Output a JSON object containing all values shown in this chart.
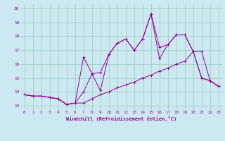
{
  "xlabel": "Windchill (Refroidissement éolien,°C)",
  "bg_color": "#cce8f0",
  "line_color": "#990099",
  "grid_color": "#99ccbb",
  "xlim": [
    -0.5,
    23.5
  ],
  "ylim": [
    12.7,
    20.3
  ],
  "yticks": [
    13,
    14,
    15,
    16,
    17,
    18,
    19,
    20
  ],
  "xticks": [
    0,
    1,
    2,
    3,
    4,
    5,
    6,
    7,
    8,
    9,
    10,
    11,
    12,
    13,
    14,
    15,
    16,
    17,
    18,
    19,
    20,
    21,
    22,
    23
  ],
  "line1_x": [
    0,
    1,
    2,
    3,
    4,
    5,
    6,
    7,
    8,
    9,
    10,
    11,
    12,
    13,
    14,
    15,
    16,
    17,
    18,
    19,
    20,
    21,
    22,
    23
  ],
  "line1_y": [
    13.8,
    13.7,
    13.7,
    13.6,
    13.5,
    13.1,
    13.2,
    13.2,
    13.5,
    13.8,
    14.0,
    14.3,
    14.5,
    14.7,
    15.0,
    15.2,
    15.5,
    15.7,
    16.0,
    16.2,
    16.9,
    16.9,
    14.8,
    14.4
  ],
  "line2_x": [
    0,
    1,
    2,
    3,
    4,
    5,
    6,
    7,
    8,
    9,
    10,
    11,
    12,
    13,
    14,
    15,
    16,
    17,
    18,
    19,
    20,
    21,
    22,
    23
  ],
  "line2_y": [
    13.8,
    13.7,
    13.7,
    13.6,
    13.5,
    13.1,
    13.2,
    16.5,
    15.3,
    14.1,
    16.7,
    17.5,
    17.8,
    17.0,
    17.8,
    19.6,
    16.4,
    17.4,
    18.1,
    18.1,
    16.9,
    15.0,
    14.8,
    14.4
  ],
  "line3_x": [
    0,
    1,
    2,
    3,
    4,
    5,
    6,
    7,
    8,
    9,
    10,
    11,
    12,
    13,
    14,
    15,
    16,
    17,
    18,
    19,
    20,
    21,
    22,
    23
  ],
  "line3_y": [
    13.8,
    13.7,
    13.7,
    13.6,
    13.5,
    13.1,
    13.2,
    14.0,
    15.3,
    15.4,
    16.7,
    17.5,
    17.8,
    17.0,
    17.8,
    19.6,
    17.2,
    17.4,
    18.1,
    18.1,
    16.9,
    15.0,
    14.8,
    14.4
  ]
}
